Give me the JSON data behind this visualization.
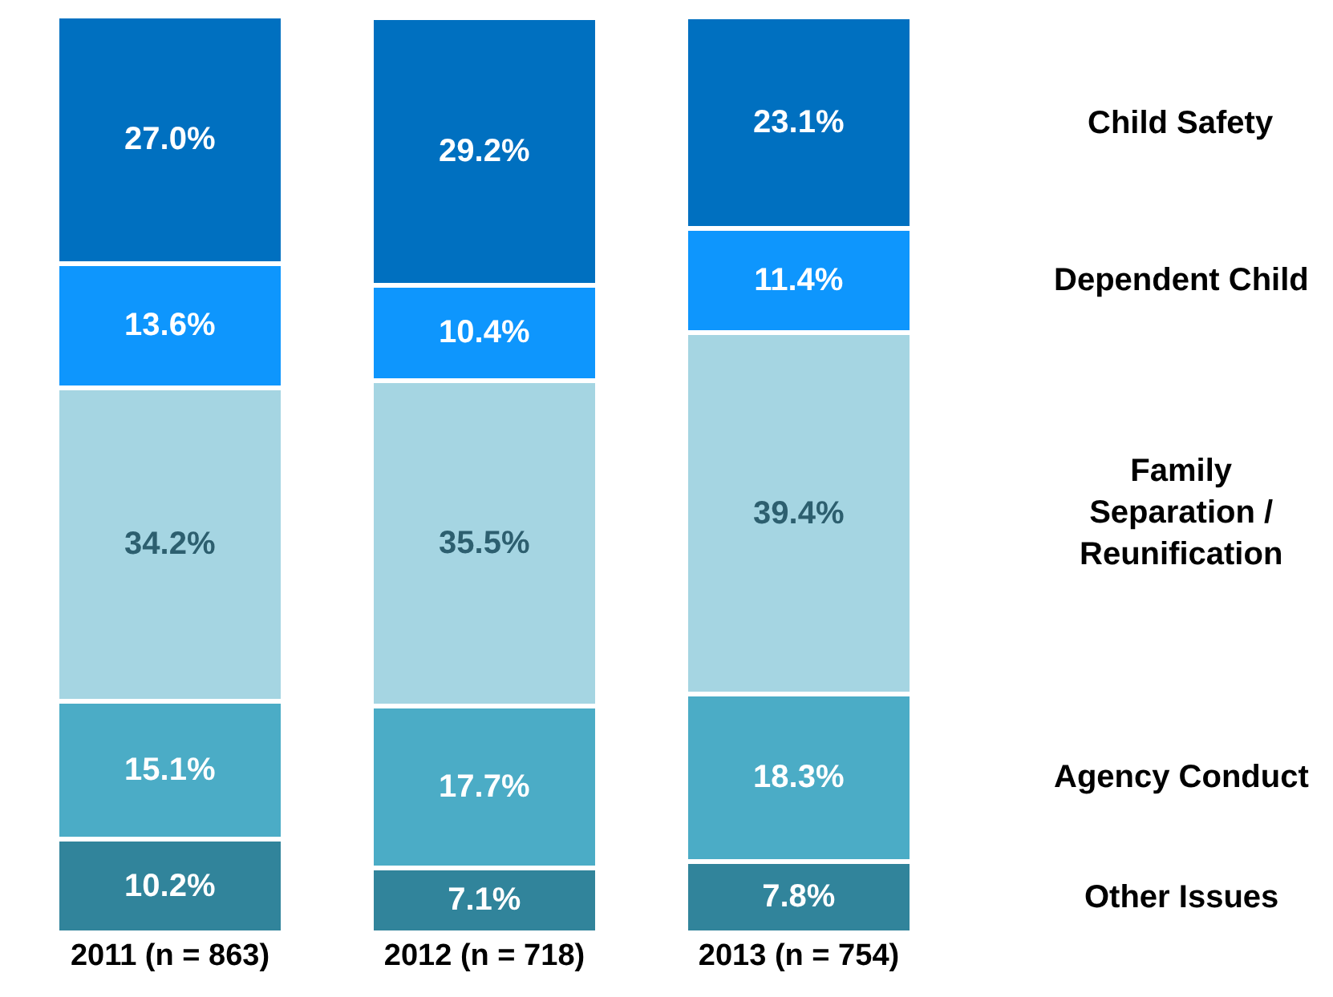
{
  "chart_data": {
    "type": "bar",
    "stacked": true,
    "legend": false,
    "tick_labels": "x",
    "categories": [
      "2011 (n = 863)",
      "2012 (n = 718)",
      "2013 (n = 754)"
    ],
    "series": [
      {
        "name": "Other Issues",
        "color": "#31849b",
        "values": [
          10.2,
          7.1,
          7.8
        ],
        "value_labels": [
          "10.2%",
          "7.1%",
          "7.8%"
        ]
      },
      {
        "name": "Agency Conduct",
        "color": "#4bacc6",
        "values": [
          15.1,
          17.7,
          18.3
        ],
        "value_labels": [
          "15.1%",
          "17.7%",
          "18.3%"
        ]
      },
      {
        "name": "Family Separation / Reunification",
        "color": "#a5d5e2",
        "values": [
          34.2,
          35.5,
          39.4
        ],
        "value_labels": [
          "34.2%",
          "35.5%",
          "39.4%"
        ]
      },
      {
        "name": "Dependent Child",
        "color": "#0e96fd",
        "values": [
          13.6,
          10.4,
          11.4
        ],
        "value_labels": [
          "13.6%",
          "10.4%",
          "11.4%"
        ]
      },
      {
        "name": "Child Safety",
        "color": "#0070c0",
        "values": [
          27.0,
          29.2,
          23.1
        ],
        "value_labels": [
          "27.0%",
          "29.2%",
          "23.1%"
        ]
      }
    ]
  }
}
